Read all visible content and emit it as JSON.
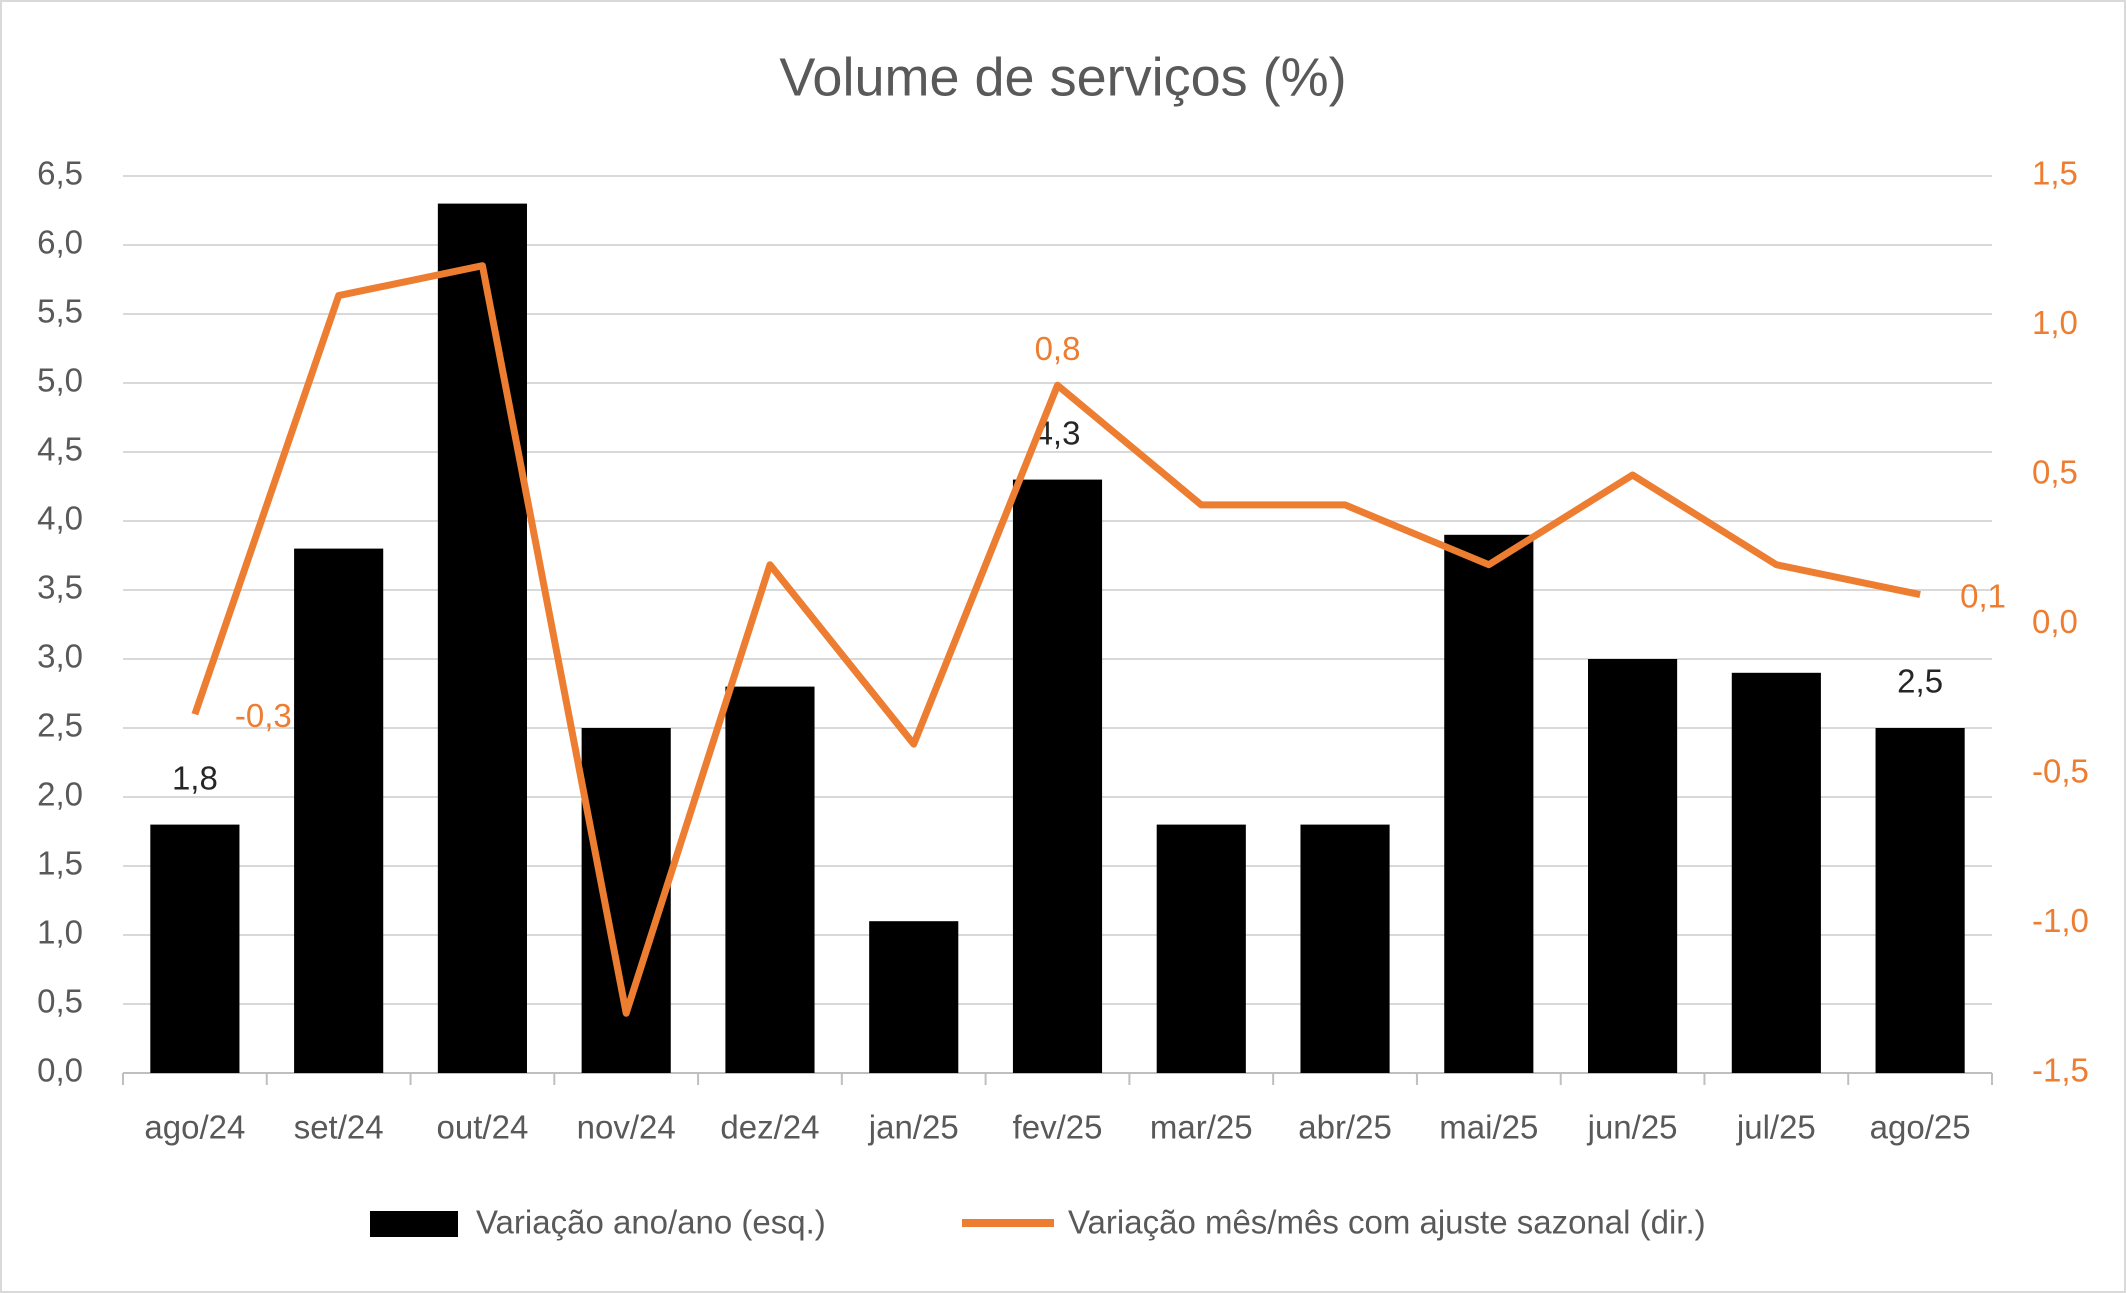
{
  "chart_data": {
    "type": "bar",
    "title": "Volume de serviços (%)",
    "categories": [
      "ago/24",
      "set/24",
      "out/24",
      "nov/24",
      "dez/24",
      "jan/25",
      "fev/25",
      "mar/25",
      "abr/25",
      "mai/25",
      "jun/25",
      "jul/25",
      "ago/25"
    ],
    "series": [
      {
        "name": "Variação ano/ano (esq.)",
        "type": "bar",
        "color": "#000000",
        "values": [
          1.8,
          3.8,
          6.3,
          2.5,
          2.8,
          1.1,
          4.3,
          1.8,
          1.8,
          3.9,
          3.0,
          2.9,
          2.5
        ],
        "value_labels": [
          "1,8",
          null,
          null,
          null,
          null,
          null,
          "4,3",
          null,
          null,
          null,
          null,
          null,
          "2,5"
        ]
      },
      {
        "name": "Variação mês/mês com ajuste sazonal (dir.)",
        "type": "line",
        "axis": "y2",
        "color": "#ed7d31",
        "values": [
          -0.3,
          1.1,
          1.2,
          -1.3,
          0.2,
          -0.4,
          0.8,
          0.4,
          0.4,
          0.2,
          0.5,
          0.2,
          0.1
        ],
        "value_labels": [
          "-0,3",
          null,
          null,
          null,
          null,
          null,
          "0,8",
          null,
          null,
          null,
          null,
          null,
          "0,1"
        ]
      }
    ],
    "ylim": [
      0,
      6.5
    ],
    "yticks": [
      {
        "value": 0,
        "label": "0,0"
      },
      {
        "value": 0.5,
        "label": "0,5"
      },
      {
        "value": 1,
        "label": "1,0"
      },
      {
        "value": 1.5,
        "label": "1,5"
      },
      {
        "value": 2,
        "label": "2,0"
      },
      {
        "value": 2.5,
        "label": "2,5"
      },
      {
        "value": 3,
        "label": "3,0"
      },
      {
        "value": 3.5,
        "label": "3,5"
      },
      {
        "value": 4,
        "label": "4,0"
      },
      {
        "value": 4.5,
        "label": "4,5"
      },
      {
        "value": 5,
        "label": "5,0"
      },
      {
        "value": 5.5,
        "label": "5,5"
      },
      {
        "value": 6,
        "label": "6,0"
      },
      {
        "value": 6.5,
        "label": "6,5"
      }
    ],
    "y2lim": [
      -1.5,
      1.5
    ],
    "y2ticks": [
      {
        "value": -1.5,
        "label": "-1,5"
      },
      {
        "value": -1,
        "label": "-1,0"
      },
      {
        "value": -0.5,
        "label": "-0,5"
      },
      {
        "value": 0,
        "label": "0,0"
      },
      {
        "value": 0.5,
        "label": "0,5"
      },
      {
        "value": 1,
        "label": "1,0"
      },
      {
        "value": 1.5,
        "label": "1,5"
      }
    ],
    "grid": true,
    "legend": "bottom"
  }
}
